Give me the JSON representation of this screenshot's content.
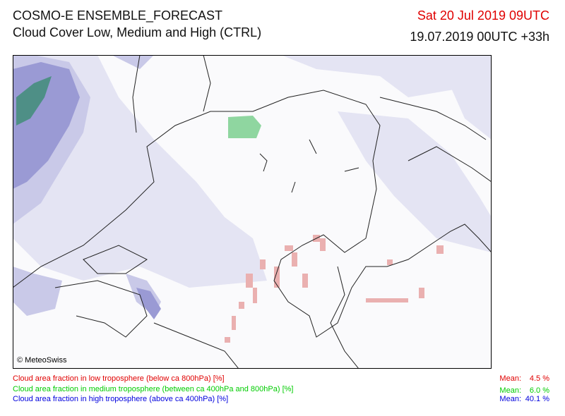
{
  "header": {
    "title": "COSMO-E ENSEMBLE_FORECAST",
    "subtitle": "Cloud Cover Low, Medium and High (CTRL)",
    "valid_time": "Sat 20 Jul 2019 09UTC",
    "run_time": "19.07.2019 00UTC +33h"
  },
  "map": {
    "credit": "© MeteoSwiss"
  },
  "legend": [
    {
      "label": "Cloud area fraction in low troposphere (below ca 800hPa) [%]",
      "mean_label": "Mean:",
      "mean_value": "4.5 %"
    },
    {
      "label": "Cloud area fraction in medium troposphere (between ca 400hPa and 800hPa) [%]",
      "mean_label": "Mean:",
      "mean_value": "6.0 %"
    },
    {
      "label": "Cloud area fraction in high troposphere (above ca 400hPa) [%]",
      "mean_label": "Mean:",
      "mean_value": "40.1 %"
    }
  ]
}
